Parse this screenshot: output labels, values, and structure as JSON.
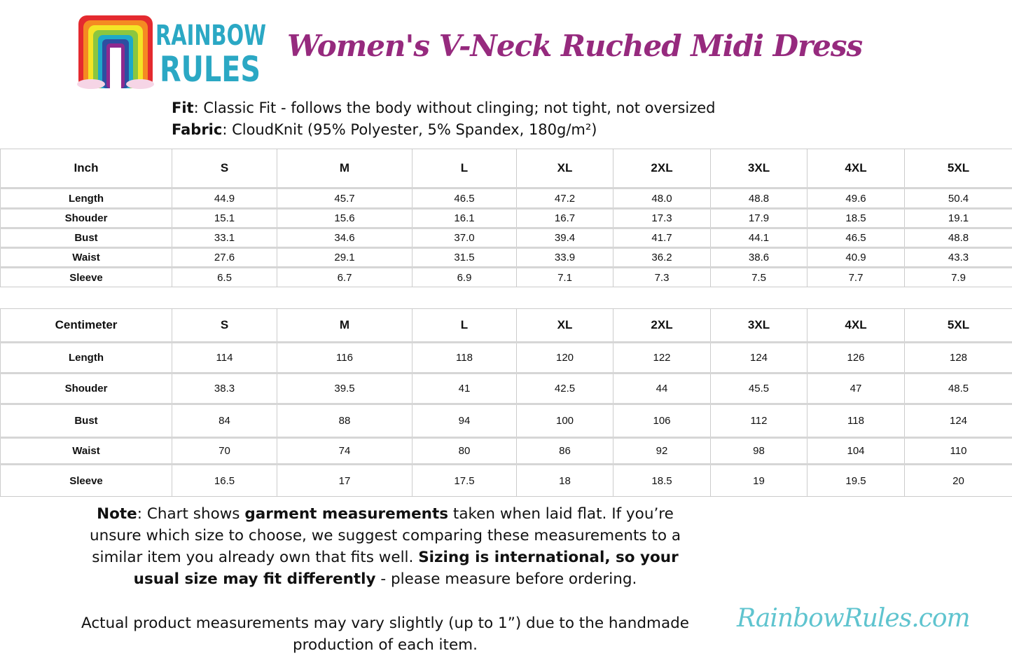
{
  "brand": {
    "logo_text": "RAINBOW RULES",
    "website": "RainbowRules.com",
    "colors": {
      "title": "#962a7e",
      "logo_text": "#2ba8c4",
      "website": "#5fc4cf"
    }
  },
  "title": "Women's V-Neck Ruched Midi Dress",
  "specs": {
    "fit_label": "Fit",
    "fit_value": ": Classic Fit - follows the body without clinging; not tight, not oversized",
    "fabric_label": "Fabric",
    "fabric_value": ": CloudKnit (95% Polyester, 5% Spandex, 180g/m²)"
  },
  "sizes": [
    "S",
    "M",
    "L",
    "XL",
    "2XL",
    "3XL",
    "4XL",
    "5XL"
  ],
  "inch_table": {
    "unit": "Inch",
    "rows": [
      {
        "label": "Length",
        "values": [
          "44.9",
          "45.7",
          "46.5",
          "47.2",
          "48.0",
          "48.8",
          "49.6",
          "50.4"
        ]
      },
      {
        "label": "Shouder",
        "values": [
          "15.1",
          "15.6",
          "16.1",
          "16.7",
          "17.3",
          "17.9",
          "18.5",
          "19.1"
        ]
      },
      {
        "label": "Bust",
        "values": [
          "33.1",
          "34.6",
          "37.0",
          "39.4",
          "41.7",
          "44.1",
          "46.5",
          "48.8"
        ]
      },
      {
        "label": "Waist",
        "values": [
          "27.6",
          "29.1",
          "31.5",
          "33.9",
          "36.2",
          "38.6",
          "40.9",
          "43.3"
        ]
      },
      {
        "label": "Sleeve",
        "values": [
          "6.5",
          "6.7",
          "6.9",
          "7.1",
          "7.3",
          "7.5",
          "7.7",
          "7.9"
        ]
      }
    ]
  },
  "cm_table": {
    "unit": "Centimeter",
    "rows": [
      {
        "label": "Length",
        "values": [
          "114",
          "116",
          "118",
          "120",
          "122",
          "124",
          "126",
          "128"
        ]
      },
      {
        "label": "Shouder",
        "values": [
          "38.3",
          "39.5",
          "41",
          "42.5",
          "44",
          "45.5",
          "47",
          "48.5"
        ]
      },
      {
        "label": "Bust",
        "values": [
          "84",
          "88",
          "94",
          "100",
          "106",
          "112",
          "118",
          "124"
        ]
      },
      {
        "label": "Waist",
        "values": [
          "70",
          "74",
          "80",
          "86",
          "92",
          "98",
          "104",
          "110"
        ]
      },
      {
        "label": "Sleeve",
        "values": [
          "16.5",
          "17",
          "17.5",
          "18",
          "18.5",
          "19",
          "19.5",
          "20"
        ]
      }
    ]
  },
  "note": {
    "segments": [
      {
        "text": "Note",
        "bold": true
      },
      {
        "text": ": Chart shows ",
        "bold": false
      },
      {
        "text": "garment measurements",
        "bold": true
      },
      {
        "text": " taken when laid flat. If you’re unsure which size to choose, we suggest comparing these measurements to a similar item you already own that fits well. ",
        "bold": false
      },
      {
        "text": "Sizing is international, so your usual size may fit differently",
        "bold": true
      },
      {
        "text": " - please measure before ordering.",
        "bold": false
      }
    ],
    "disclaimer": "Actual product measurements may vary slightly (up to 1”) due to the handmade production of each item."
  }
}
